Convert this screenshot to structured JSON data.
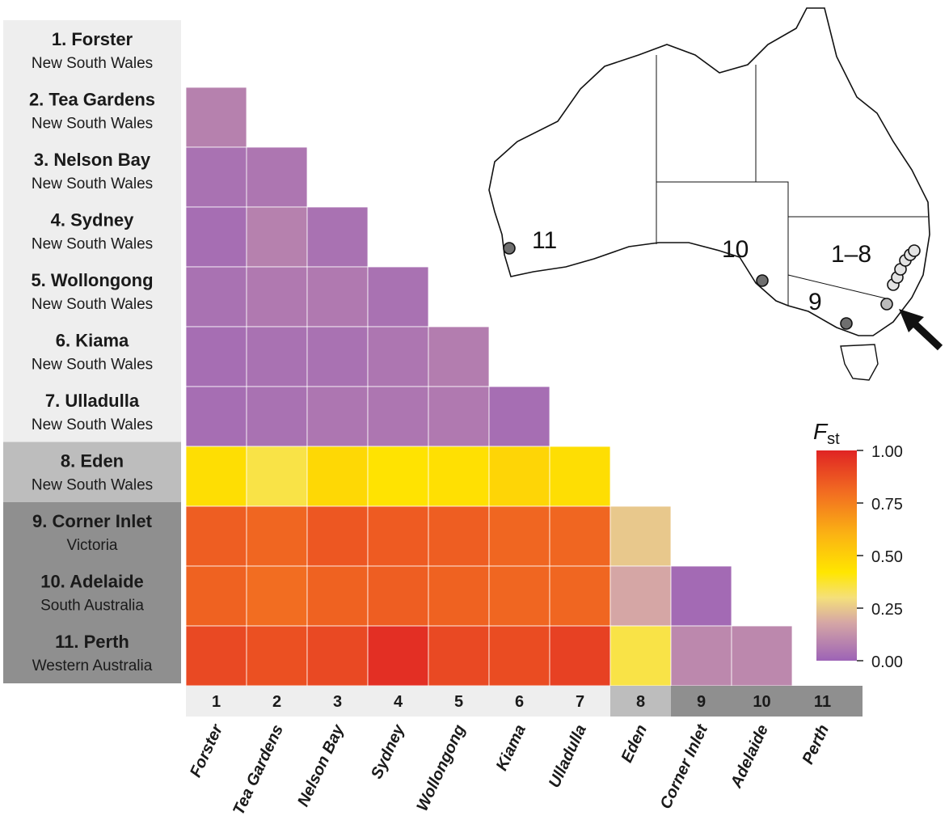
{
  "chart_data": {
    "type": "heatmap",
    "metric": "pairwise Fst",
    "sites": [
      {
        "num": "1",
        "label": "1. Forster",
        "region": "New South Wales",
        "short": "Forster",
        "group": "A"
      },
      {
        "num": "2",
        "label": "2. Tea Gardens",
        "region": "New South Wales",
        "short": "Tea Gardens",
        "group": "A"
      },
      {
        "num": "3",
        "label": "3. Nelson Bay",
        "region": "New South Wales",
        "short": "Nelson Bay",
        "group": "A"
      },
      {
        "num": "4",
        "label": "4. Sydney",
        "region": "New South Wales",
        "short": "Sydney",
        "group": "A"
      },
      {
        "num": "5",
        "label": "5. Wollongong",
        "region": "New South Wales",
        "short": "Wollongong",
        "group": "A"
      },
      {
        "num": "6",
        "label": "6. Kiama",
        "region": "New South Wales",
        "short": "Kiama",
        "group": "A"
      },
      {
        "num": "7",
        "label": "7. Ulladulla",
        "region": "New South Wales",
        "short": "Ulladulla",
        "group": "A"
      },
      {
        "num": "8",
        "label": "8. Eden",
        "region": "New South Wales",
        "short": "Eden",
        "group": "B"
      },
      {
        "num": "9",
        "label": "9. Corner Inlet",
        "region": "Victoria",
        "short": "Corner Inlet",
        "group": "C"
      },
      {
        "num": "10",
        "label": "10. Adelaide",
        "region": "South Australia",
        "short": "Adelaide",
        "group": "C"
      },
      {
        "num": "11",
        "label": "11. Perth",
        "region": "Western Australia",
        "short": "Perth",
        "group": "C"
      }
    ],
    "matrix": [
      [
        0.08
      ],
      [
        0.04,
        0.05
      ],
      [
        0.03,
        0.08,
        0.04
      ],
      [
        0.04,
        0.06,
        0.06,
        0.04
      ],
      [
        0.03,
        0.04,
        0.04,
        0.05,
        0.07
      ],
      [
        0.03,
        0.04,
        0.05,
        0.05,
        0.06,
        0.03
      ],
      [
        0.45,
        0.35,
        0.47,
        0.43,
        0.44,
        0.48,
        0.45
      ],
      [
        0.84,
        0.82,
        0.86,
        0.85,
        0.84,
        0.82,
        0.82,
        0.25
      ],
      [
        0.83,
        0.8,
        0.83,
        0.84,
        0.83,
        0.82,
        0.82,
        0.18,
        0.02
      ],
      [
        0.9,
        0.88,
        0.9,
        0.97,
        0.9,
        0.89,
        0.92,
        0.35,
        0.1,
        0.1
      ]
    ],
    "colorscale": {
      "stops": [
        {
          "v": 0.0,
          "c": "#9d63b6"
        },
        {
          "v": 0.18,
          "c": "#d5a6a5"
        },
        {
          "v": 0.3,
          "c": "#f5e07a"
        },
        {
          "v": 0.42,
          "c": "#ffe600"
        },
        {
          "v": 0.6,
          "c": "#fbb313"
        },
        {
          "v": 0.8,
          "c": "#f26d21"
        },
        {
          "v": 1.0,
          "c": "#e02424"
        }
      ],
      "ticks": [
        "1.00",
        "0.75",
        "0.50",
        "0.25",
        "0.00"
      ],
      "title_main": "F",
      "title_sub": "st"
    },
    "group_colors": {
      "A": "#eeeeee",
      "B": "#bdbdbd",
      "C": "#8f8f8f"
    },
    "map": {
      "labels": [
        "11",
        "10",
        "1–8",
        "9"
      ],
      "sites_marked": [
        "Perth",
        "Adelaide",
        "Corner Inlet",
        "Eden",
        "New South Wales sites"
      ]
    }
  }
}
